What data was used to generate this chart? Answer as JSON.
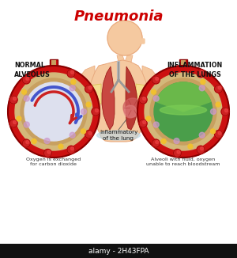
{
  "title": "Pneumonia",
  "title_color": "#cc0000",
  "title_fontsize": 13,
  "bg_color": "#ffffff",
  "left_label": "NORMAL\nALVEOLUS",
  "right_label": "INFLAMMATION\nOF THE LUNGS",
  "center_label": "Inflammatory\nof the lung",
  "bottom_left_label": "Oxygen is exchanged\nfor carbon dioxide",
  "bottom_right_label": "Alveoli with fluid, oxygen\nunable to reach bloodstream",
  "watermark": "alamy - 2H43FPA",
  "skin_color": "#f5c9a0",
  "skin_edge": "#e8a87c",
  "red_outer": "#cc1111",
  "red_dark": "#991111",
  "tan_ring": "#d4b896",
  "tan_inner": "#c8a87a",
  "alv_air": "#e8e8f0",
  "alv_fluid": "#5db85a",
  "alv_fluid2": "#7acc60",
  "yellow_dot": "#f0c030",
  "arrow_blue": "#4455cc",
  "arrow_red": "#cc2222",
  "connector_yellow": "#f5e090",
  "connector_edge": "#d4b840",
  "lung_red": "#c0392b",
  "lung_inflamed": "#c06050",
  "alamy_bg": "#222222",
  "alamy_text": "#ffffff"
}
